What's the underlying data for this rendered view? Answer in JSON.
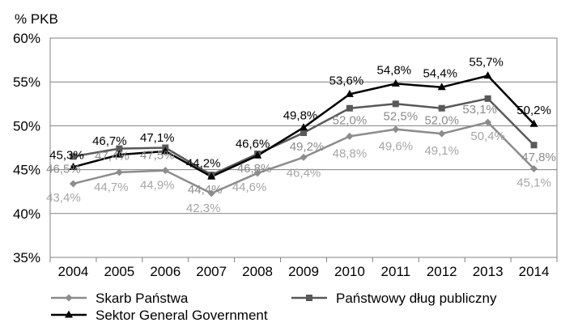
{
  "chart_data": {
    "type": "line",
    "ylabel": "% PKB",
    "ylim": [
      35,
      60
    ],
    "yticks": [
      "35%",
      "40%",
      "45%",
      "50%",
      "55%",
      "60%"
    ],
    "grid": true,
    "legend_position": "bottom",
    "categories": [
      "2004",
      "2005",
      "2006",
      "2007",
      "2008",
      "2009",
      "2010",
      "2011",
      "2012",
      "2013",
      "2014"
    ],
    "series": [
      {
        "name": "Skarb Państwa",
        "marker": "diamond",
        "color": "#8c8c8c",
        "label_color": "#a6a6a6",
        "values": [
          43.4,
          44.7,
          44.9,
          42.3,
          44.6,
          46.4,
          48.8,
          49.6,
          49.1,
          50.4,
          45.1
        ],
        "labels": [
          "43,4%",
          "44,7%",
          "44,9%",
          "42,3%",
          "44,6%",
          "46,4%",
          "48,8%",
          "49,6%",
          "49,1%",
          "50,4%",
          "45,1%"
        ]
      },
      {
        "name": "Państwowy dług publiczny",
        "marker": "square",
        "color": "#595959",
        "label_color": "#8c8c8c",
        "values": [
          46.5,
          47.4,
          47.5,
          44.4,
          46.8,
          49.2,
          52.0,
          52.5,
          52.0,
          53.1,
          47.8
        ],
        "labels": [
          "46,5%",
          "47,4%",
          "47,5%",
          "44,4%",
          "46,8%",
          "49,2%",
          "52,0%",
          "52,5%",
          "52,0%",
          "53,1%",
          "47,8%"
        ]
      },
      {
        "name": "Sektor General Government",
        "marker": "triangle",
        "color": "#000000",
        "label_color": "#000000",
        "values": [
          45.3,
          46.7,
          47.1,
          44.2,
          46.6,
          49.8,
          53.6,
          54.8,
          54.4,
          55.7,
          50.2
        ],
        "labels": [
          "45,3%",
          "46,7%",
          "47,1%",
          "44,2%",
          "46,6%",
          "49,8%",
          "53,6%",
          "54,8%",
          "54,4%",
          "55,7%",
          "50,2%"
        ]
      }
    ]
  }
}
